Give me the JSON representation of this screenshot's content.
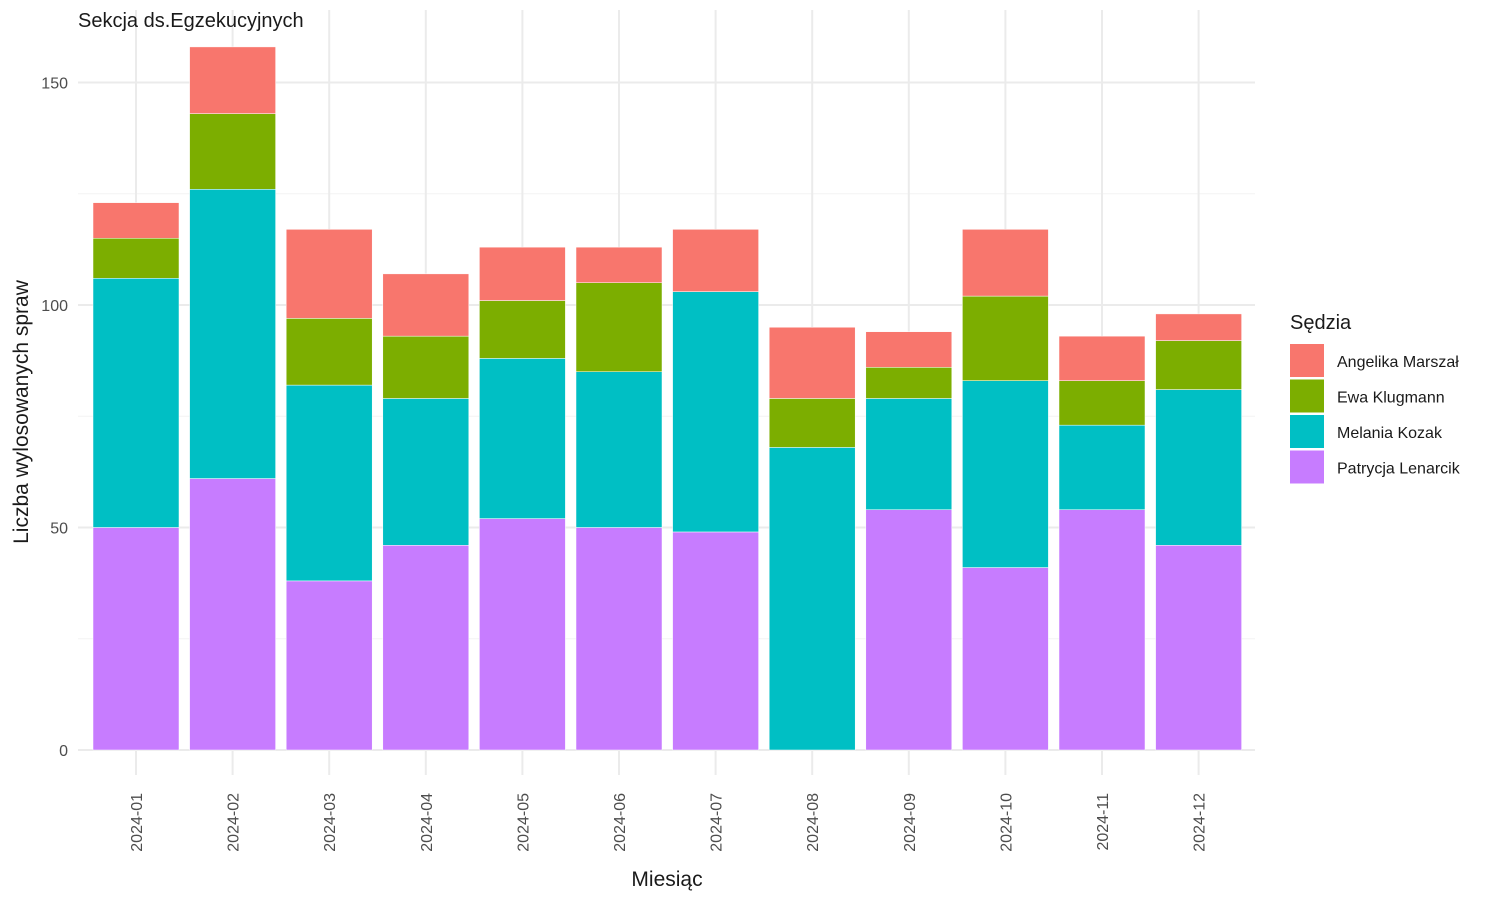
{
  "chart_data": {
    "type": "bar",
    "stacked": true,
    "title": "Sekcja ds.Egzekucyjnych",
    "xlabel": "Miesiąc",
    "ylabel": "Liczba wylosowanych spraw",
    "ylim": [
      0,
      160
    ],
    "yticks": [
      0,
      50,
      100,
      150
    ],
    "grid": true,
    "legend": {
      "title": "Sędzia",
      "position": "right"
    },
    "categories": [
      "2024-01",
      "2024-02",
      "2024-03",
      "2024-04",
      "2024-05",
      "2024-06",
      "2024-07",
      "2024-08",
      "2024-09",
      "2024-10",
      "2024-11",
      "2024-12"
    ],
    "series": [
      {
        "name": "Patrycja Lenarcik",
        "color": "#C77CFF",
        "values": [
          50,
          61,
          38,
          46,
          52,
          50,
          49,
          0,
          54,
          41,
          54,
          46
        ]
      },
      {
        "name": "Melania Kozak",
        "color": "#00BFC4",
        "values": [
          56,
          65,
          44,
          33,
          36,
          35,
          54,
          68,
          25,
          42,
          19,
          35
        ]
      },
      {
        "name": "Ewa Klugmann",
        "color": "#7CAE00",
        "values": [
          9,
          17,
          15,
          14,
          13,
          20,
          0,
          11,
          7,
          19,
          10,
          11
        ]
      },
      {
        "name": "Angelika Marszał",
        "color": "#F8766D",
        "values": [
          8,
          15,
          20,
          14,
          12,
          8,
          14,
          16,
          8,
          15,
          10,
          6
        ]
      }
    ],
    "legend_order": [
      "Angelika Marszał",
      "Ewa Klugmann",
      "Melania Kozak",
      "Patrycja Lenarcik"
    ]
  }
}
